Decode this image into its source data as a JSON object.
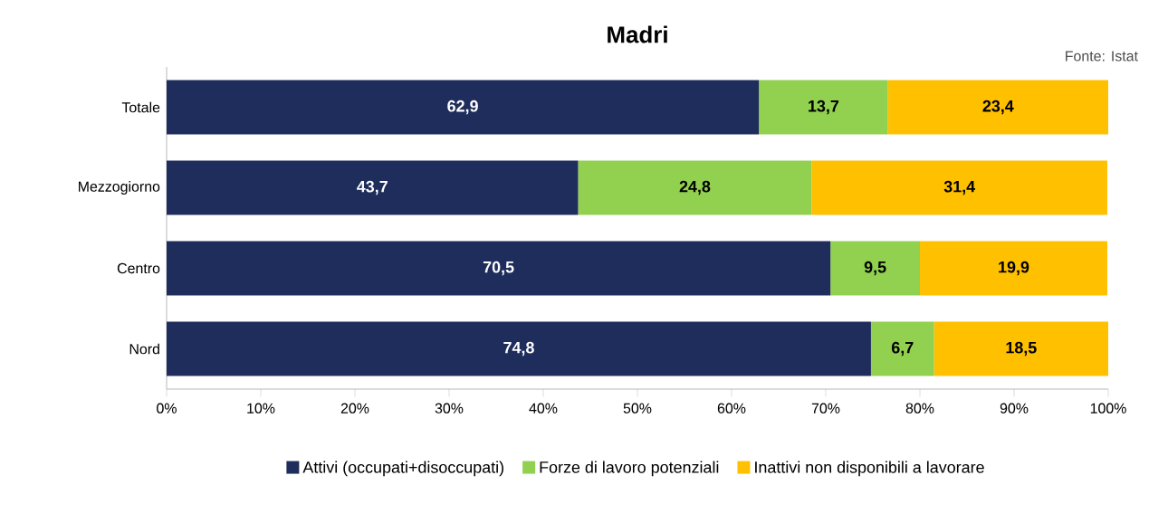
{
  "chart_data": {
    "type": "bar",
    "orientation": "horizontal",
    "stacked": true,
    "title": "Madri",
    "annotations": [
      "Fonte: Istat"
    ],
    "categories": [
      "Totale",
      "Mezzogiorno",
      "Centro",
      "Nord"
    ],
    "series": [
      {
        "name": "Attivi (occupati+disoccupati)",
        "color": "#1f2d5c",
        "values": [
          62.9,
          43.7,
          70.5,
          74.8
        ],
        "value_labels": [
          "62,9",
          "43,7",
          "70,5",
          "74,8"
        ]
      },
      {
        "name": "Forze di lavoro potenziali",
        "color": "#92d050",
        "values": [
          13.7,
          24.8,
          9.5,
          6.7
        ],
        "value_labels": [
          "13,7",
          "24,8",
          "9,5",
          "6,7"
        ]
      },
      {
        "name": "Inattivi non disponibili a lavorare",
        "color": "#ffc000",
        "values": [
          23.4,
          31.4,
          19.9,
          18.5
        ],
        "value_labels": [
          "23,4",
          "31,4",
          "19,9",
          "18,5"
        ]
      }
    ],
    "xlim": [
      0,
      100
    ],
    "xticks": [
      {
        "value": 0,
        "label": "0%"
      },
      {
        "value": 10,
        "label": "10%"
      },
      {
        "value": 20,
        "label": "20%"
      },
      {
        "value": 30,
        "label": "30%"
      },
      {
        "value": 40,
        "label": "40%"
      },
      {
        "value": 50,
        "label": "50%"
      },
      {
        "value": 60,
        "label": "60%"
      },
      {
        "value": 70,
        "label": "70%"
      },
      {
        "value": 80,
        "label": "80%"
      },
      {
        "value": 90,
        "label": "90%"
      },
      {
        "value": 100,
        "label": "100%"
      }
    ],
    "legend": "bottom",
    "grid": false
  }
}
